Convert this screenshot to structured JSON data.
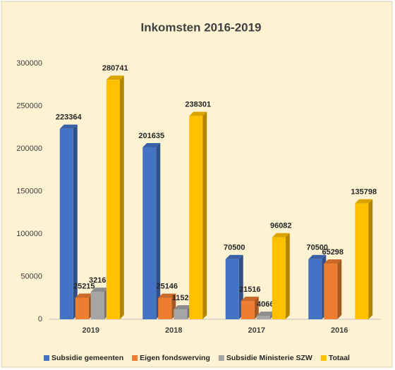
{
  "chart_data": {
    "type": "bar3d",
    "title": "Inkomsten 2016-2019",
    "categories": [
      "2019",
      "2018",
      "2017",
      "2016"
    ],
    "series": [
      {
        "name": "Subsidie gemeenten",
        "color": "#4472c4",
        "values": [
          223364,
          201635,
          70500,
          70500
        ]
      },
      {
        "name": "Eigen fondswerving",
        "color": "#ed7d31",
        "values": [
          25215,
          25146,
          21516,
          65298
        ]
      },
      {
        "name": "Subsidie Ministerie SZW",
        "color": "#a5a5a5",
        "values": [
          32162,
          11520,
          4066,
          null
        ]
      },
      {
        "name": "Totaal",
        "color": "#ffc000",
        "values": [
          280741,
          238301,
          96082,
          135798
        ]
      }
    ],
    "ylim": [
      0,
      300000
    ],
    "yticks": [
      0,
      50000,
      100000,
      150000,
      200000,
      250000,
      300000
    ],
    "grid": false,
    "legend": "bottom"
  }
}
